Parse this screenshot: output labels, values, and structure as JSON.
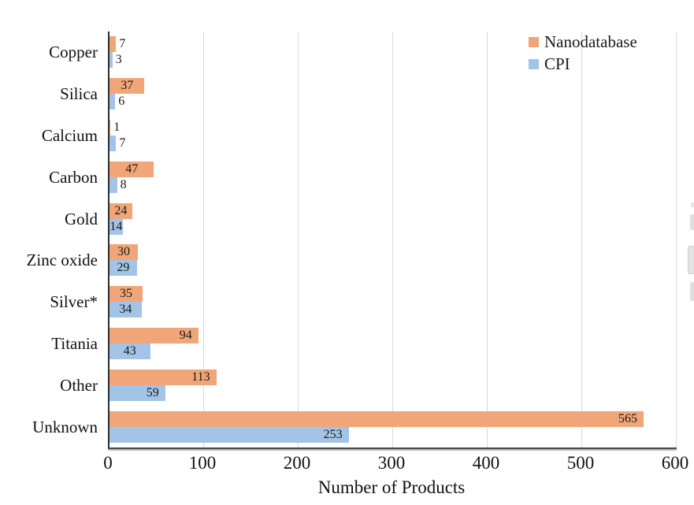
{
  "figure": {
    "background": "#ffffff",
    "xlabel": "Number of Products"
  },
  "chart_data": {
    "type": "bar",
    "orientation": "horizontal",
    "title": "",
    "xlabel": "Number of Products",
    "ylabel": "",
    "xlim": [
      0,
      600
    ],
    "xticks": [
      0,
      100,
      200,
      300,
      400,
      500,
      600
    ],
    "grid": true,
    "gridline_color": "#d9d9d9",
    "axis_color": "#2e2e2e",
    "legend_position": "top-right",
    "data_labels": true,
    "categories": [
      "Copper",
      "Silica",
      "Calcium",
      "Carbon",
      "Gold",
      "Zinc oxide",
      "Silver*",
      "Titania",
      "Other",
      "Unknown"
    ],
    "series": [
      {
        "name": "Nanodatabase",
        "color": "#F0A678",
        "values": [
          7,
          37,
          1,
          47,
          24,
          30,
          35,
          94,
          113,
          565
        ],
        "label_inside": [
          false,
          true,
          false,
          true,
          true,
          true,
          true,
          true,
          true,
          true
        ]
      },
      {
        "name": "CPI",
        "color": "#A3C4E6",
        "values": [
          3,
          6,
          7,
          8,
          14,
          29,
          34,
          43,
          59,
          253
        ],
        "label_inside": [
          false,
          false,
          false,
          false,
          true,
          true,
          true,
          true,
          true,
          true
        ]
      }
    ]
  }
}
